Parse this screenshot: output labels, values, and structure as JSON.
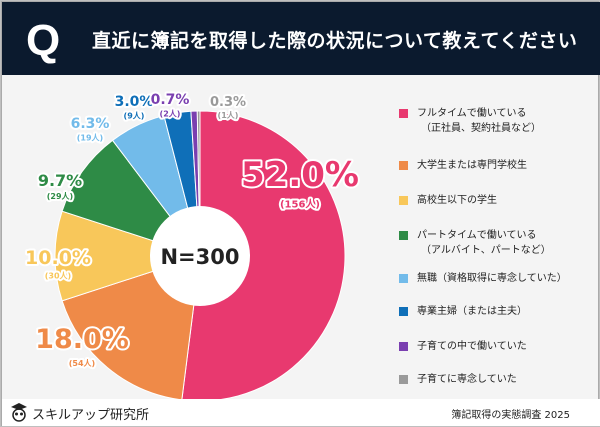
{
  "header": {
    "q": "Q",
    "title": "直近に簿記を取得した際の状況について教えてください"
  },
  "chart_data": {
    "type": "pie",
    "center_label": "N=300",
    "categories": [
      "フルタイムで働いている（正社員、契約社員など）",
      "大学生または専門学校生",
      "高校生以下の学生",
      "パートタイムで働いている（アルバイト、パートなど）",
      "無職（資格取得に専念していた）",
      "専業主婦（または主夫）",
      "子育ての中で働いていた",
      "子育てに専念していた"
    ],
    "values": [
      52.0,
      18.0,
      10.0,
      9.7,
      6.3,
      3.0,
      0.7,
      0.3
    ],
    "percent_labels": [
      "52.0%",
      "18.0%",
      "10.0%",
      "9.7%",
      "6.3%",
      "3.0%",
      "0.7%",
      "0.3%"
    ],
    "count_labels": [
      "(156人)",
      "(54人)",
      "(30人)",
      "(29人)",
      "(19人)",
      "(9人)",
      "(2人)",
      "(1人)"
    ],
    "colors": [
      "#e8396f",
      "#ef8a48",
      "#f8c75a",
      "#2e8b46",
      "#72bbea",
      "#0f6fb8",
      "#7a3fb0",
      "#9a9a9a"
    ],
    "legend": [
      "フルタイムで働いている",
      "（正社員、契約社員など）",
      "大学生または専門学校生",
      "高校生以下の学生",
      "パートタイムで働いている",
      "（アルバイト、パートなど）",
      "無職（資格取得に専念していた）",
      "専業主婦（または主夫）",
      "子育ての中で働いていた",
      "子育てに専念していた"
    ],
    "legend_placement": "right"
  },
  "footer": {
    "logo": "スキルアップ研究所",
    "survey": "簿記取得の実態調査  2025"
  }
}
